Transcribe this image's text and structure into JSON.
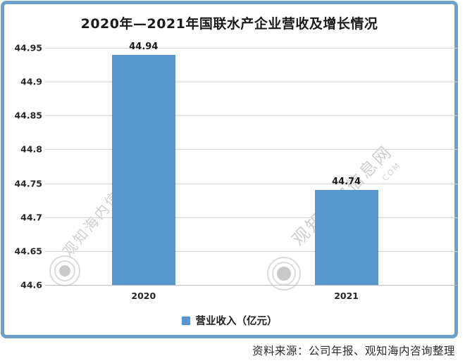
{
  "page": {
    "background": "#ffffff"
  },
  "frame": {
    "border_color": "#6CA0C8"
  },
  "chart_data": {
    "type": "bar",
    "title": "2020年—2021年国联水产企业营收及增长情况",
    "categories": [
      "2020",
      "2021"
    ],
    "values": [
      44.94,
      44.74
    ],
    "value_labels": [
      "44.94",
      "44.74"
    ],
    "series_name": "营业收入（亿元）",
    "xlabel": "",
    "ylabel": "",
    "ylim": [
      44.6,
      44.95
    ],
    "ytick_step": 0.05,
    "ytick_labels": [
      "44.6",
      "44.65",
      "44.7",
      "44.75",
      "44.8",
      "44.85",
      "44.9",
      "44.95"
    ],
    "grid": true,
    "legend_position": "bottom",
    "bar_color": "#5697D0"
  },
  "legend": {
    "marker_color": "#5697D0",
    "label": "营业收入（亿元）"
  },
  "source_note": "资料来源：公司年报、观知海内咨询整理",
  "watermark": {
    "text": "观知海内信息网",
    "subtext": ".COM"
  }
}
